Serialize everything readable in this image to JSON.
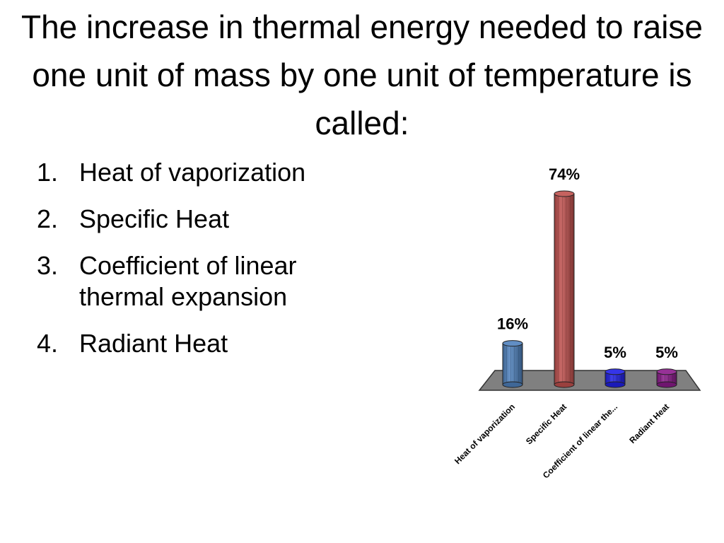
{
  "slide": {
    "title": "The increase in thermal energy needed to raise one unit of mass by one unit of temperature is called:",
    "options": [
      {
        "number": "1.",
        "text": "Heat of vaporization"
      },
      {
        "number": "2.",
        "text": "Specific Heat"
      },
      {
        "number": "3.",
        "text": "Coefficient of linear thermal expansion"
      },
      {
        "number": "4.",
        "text": "Radiant Heat"
      }
    ]
  },
  "chart_data": {
    "type": "bar",
    "categories": [
      "Heat of vaporization",
      "Specific Heat",
      "Coefficient of linear the...",
      "Radiant Heat"
    ],
    "values": [
      16,
      74,
      5,
      5
    ],
    "data_labels": [
      "16%",
      "74%",
      "5%",
      "5%"
    ],
    "colors": [
      "#4f81bd",
      "#c0504d",
      "#1f1fe6",
      "#8b1a8b"
    ],
    "floor_color": "#808080",
    "ylim": [
      0,
      74
    ],
    "grid": false,
    "legend": "none",
    "style": "3d-cylinder"
  }
}
